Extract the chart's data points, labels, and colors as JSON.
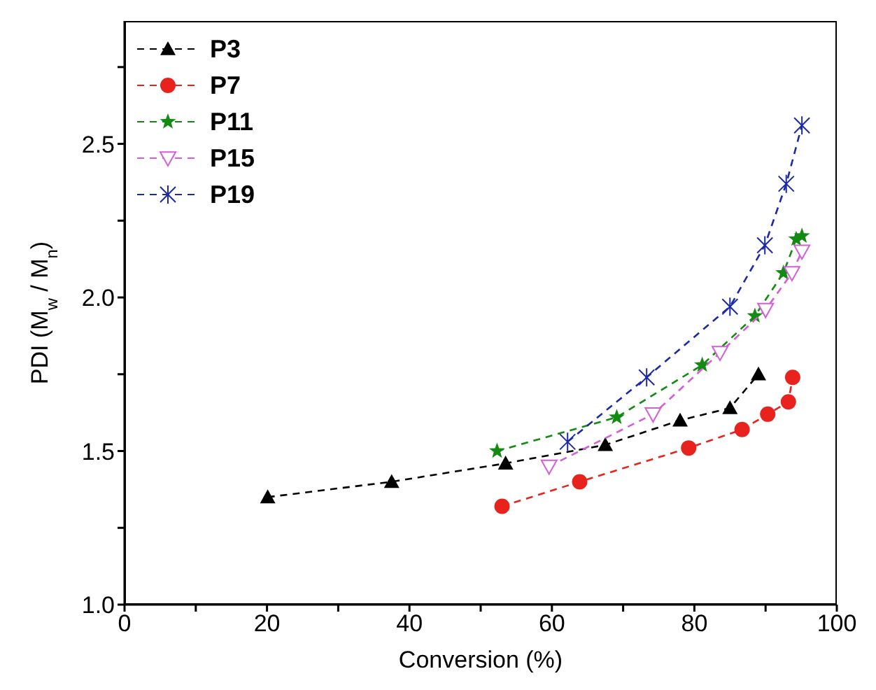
{
  "chart_data": {
    "type": "line",
    "xlabel": "Conversion (%)",
    "ylabel": "PDI (M$_{w}$ / M$_{n}$)",
    "xlim": [
      0,
      100
    ],
    "ylim": [
      1,
      2.9
    ],
    "xticks": [
      0,
      {
        "value": 10,
        "label": null
      },
      20,
      {
        "value": 30,
        "label": null
      },
      40,
      {
        "value": 50,
        "label": null
      },
      60,
      {
        "value": 70,
        "label": null
      },
      80,
      {
        "value": 90,
        "label": null
      },
      100
    ],
    "yticks": [
      {
        "value": 1,
        "label": "1.0"
      },
      {
        "value": 1.25,
        "label": null
      },
      {
        "value": 1.5,
        "label": "1.5"
      },
      {
        "value": 1.75,
        "label": null
      },
      {
        "value": 2,
        "label": "2.0"
      },
      {
        "value": 2.25,
        "label": null
      },
      {
        "value": 2.5,
        "label": "2.5"
      },
      {
        "value": 2.75,
        "label": null
      }
    ],
    "grid": false,
    "legend": "top left",
    "line_style": "dashed",
    "series": [
      {
        "name": "P3",
        "color": "#000000",
        "marker": "triangle",
        "x": [
          20.1,
          37.5,
          53.5,
          67.5,
          78,
          85,
          89
        ],
        "values": [
          1.35,
          1.4,
          1.46,
          1.52,
          1.6,
          1.64,
          1.75
        ]
      },
      {
        "name": "P7",
        "color": "#e8231e",
        "marker": "circle",
        "x": [
          53,
          63.9,
          79.2,
          86.7,
          90.3,
          93.2,
          93.8
        ],
        "values": [
          1.32,
          1.4,
          1.51,
          1.57,
          1.62,
          1.66,
          1.74
        ]
      },
      {
        "name": "P11",
        "color": "#138a13",
        "marker": "star",
        "x": [
          52.3,
          69.1,
          81.1,
          88.5,
          92.5,
          94.3,
          95.1
        ],
        "values": [
          1.5,
          1.61,
          1.78,
          1.94,
          2.08,
          2.19,
          2.2
        ]
      },
      {
        "name": "P15",
        "color": "#d45fd4",
        "marker": "triangle-down",
        "x": [
          59.6,
          74.2,
          83.6,
          90,
          93.7,
          95.1
        ],
        "values": [
          1.45,
          1.62,
          1.82,
          1.96,
          2.08,
          2.15
        ]
      },
      {
        "name": "P19",
        "color": "#1c2aa8",
        "marker": "cross",
        "x": [
          62.2,
          73.3,
          85,
          89.9,
          92.9,
          95.1
        ],
        "values": [
          1.53,
          1.74,
          1.97,
          2.17,
          2.37,
          2.56
        ]
      }
    ]
  }
}
